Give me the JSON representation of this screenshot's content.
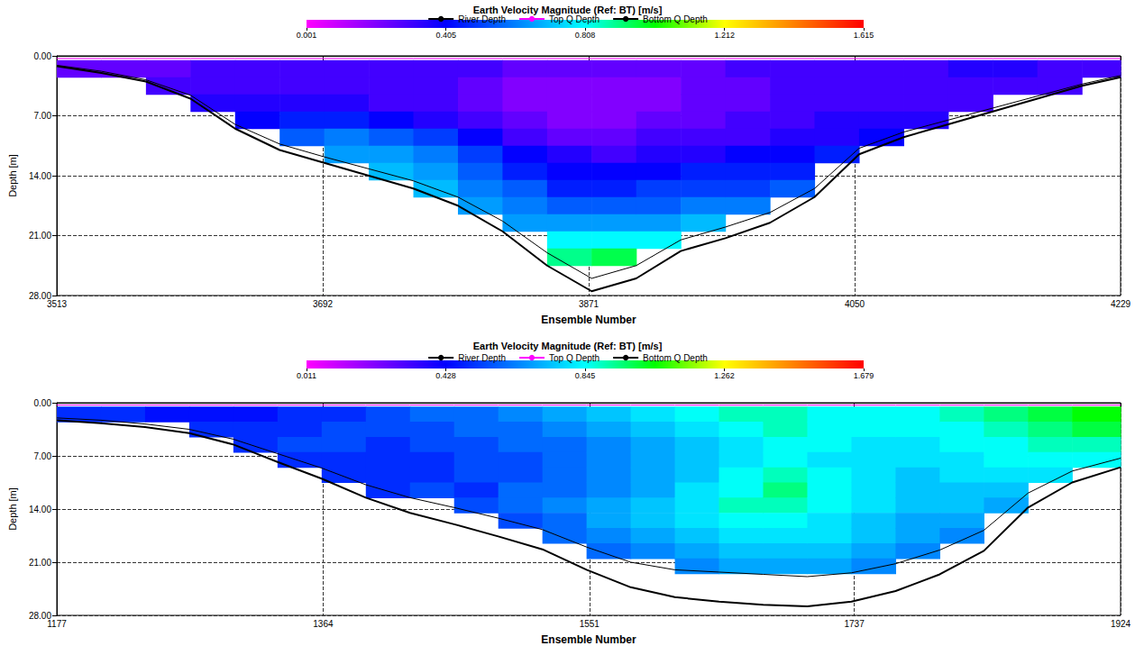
{
  "chart_data": [
    {
      "type": "heatmap",
      "title": "Earth Velocity Magnitude (Ref: BT) [m/s]",
      "x_label": "Ensemble Number",
      "y_label": "Depth [m]",
      "xlim": [
        3513,
        4229
      ],
      "xticks": [
        3513,
        3692,
        3871,
        4050,
        4229
      ],
      "ylim": [
        0,
        28
      ],
      "yticks": [
        {
          "value": 0,
          "label": "0.00"
        },
        {
          "value": 7,
          "label": "7.00"
        },
        {
          "value": 14,
          "label": "14.00"
        },
        {
          "value": 21,
          "label": "21.00"
        },
        {
          "value": 28,
          "label": "28.00"
        }
      ],
      "grid": true,
      "legend": "top",
      "colorbar": {
        "range": [
          0.001,
          1.615
        ],
        "ticks": [
          0.001,
          0.405,
          0.808,
          1.212,
          1.615
        ]
      },
      "cell_x": [
        3513,
        3543,
        3573,
        3603,
        3633,
        3663,
        3693,
        3723,
        3753,
        3783,
        3813,
        3843,
        3873,
        3903,
        3933,
        3963,
        3993,
        4023,
        4053,
        4083,
        4113,
        4143,
        4173,
        4203,
        4229
      ],
      "cell_y": [
        0.5,
        2.5,
        4.5,
        6.5,
        8.5,
        10.5,
        12.5,
        14.5,
        16.5,
        18.5,
        20.5,
        22.5,
        24.5,
        26.5
      ],
      "cells": [
        [
          0.25,
          null,
          null,
          null,
          null,
          null,
          null,
          null,
          null,
          null,
          null,
          null,
          null
        ],
        [
          0.25,
          null,
          null,
          null,
          null,
          null,
          null,
          null,
          null,
          null,
          null,
          null,
          null
        ],
        [
          0.25,
          0.3,
          null,
          null,
          null,
          null,
          null,
          null,
          null,
          null,
          null,
          null,
          null
        ],
        [
          0.3,
          0.3,
          0.35,
          null,
          null,
          null,
          null,
          null,
          null,
          null,
          null,
          null,
          null
        ],
        [
          0.3,
          0.3,
          0.35,
          0.4,
          null,
          null,
          null,
          null,
          null,
          null,
          null,
          null,
          null
        ],
        [
          0.3,
          0.3,
          0.35,
          0.45,
          0.55,
          null,
          null,
          null,
          null,
          null,
          null,
          null,
          null
        ],
        [
          0.3,
          0.3,
          0.35,
          0.45,
          0.6,
          0.65,
          null,
          null,
          null,
          null,
          null,
          null,
          null
        ],
        [
          0.3,
          0.3,
          0.3,
          0.4,
          0.55,
          0.65,
          0.7,
          null,
          null,
          null,
          null,
          null,
          null
        ],
        [
          0.3,
          0.3,
          0.3,
          0.35,
          0.5,
          0.6,
          0.65,
          0.7,
          null,
          null,
          null,
          null,
          null
        ],
        [
          0.3,
          0.25,
          0.25,
          0.3,
          0.4,
          0.5,
          0.55,
          0.6,
          0.65,
          null,
          null,
          null,
          null
        ],
        [
          0.25,
          0.2,
          0.2,
          0.25,
          0.3,
          0.4,
          0.45,
          0.55,
          0.6,
          0.65,
          null,
          null,
          null
        ],
        [
          0.25,
          0.2,
          0.2,
          0.2,
          0.25,
          0.35,
          0.4,
          0.45,
          0.55,
          0.65,
          0.8,
          0.9,
          null
        ],
        [
          0.25,
          0.2,
          0.2,
          0.2,
          0.25,
          0.3,
          0.4,
          0.45,
          0.55,
          0.65,
          0.8,
          0.95,
          null
        ],
        [
          0.25,
          0.2,
          0.2,
          0.25,
          0.3,
          0.35,
          0.4,
          0.5,
          0.55,
          0.65,
          0.8,
          null,
          null
        ],
        [
          0.25,
          0.25,
          0.25,
          0.25,
          0.3,
          0.35,
          0.45,
          0.5,
          0.6,
          0.7,
          null,
          null,
          null
        ],
        [
          0.3,
          0.25,
          0.25,
          0.3,
          0.3,
          0.4,
          0.45,
          0.5,
          0.6,
          null,
          null,
          null,
          null
        ],
        [
          0.3,
          0.3,
          0.3,
          0.3,
          0.35,
          0.4,
          0.45,
          0.55,
          null,
          null,
          null,
          null,
          null
        ],
        [
          0.3,
          0.3,
          0.3,
          0.35,
          0.35,
          0.45,
          null,
          null,
          null,
          null,
          null,
          null,
          null
        ],
        [
          0.3,
          0.3,
          0.3,
          0.35,
          0.4,
          null,
          null,
          null,
          null,
          null,
          null,
          null,
          null
        ],
        [
          0.3,
          0.3,
          0.3,
          0.35,
          null,
          null,
          null,
          null,
          null,
          null,
          null,
          null,
          null
        ],
        [
          0.35,
          0.3,
          0.3,
          null,
          null,
          null,
          null,
          null,
          null,
          null,
          null,
          null,
          null
        ],
        [
          0.35,
          0.3,
          null,
          null,
          null,
          null,
          null,
          null,
          null,
          null,
          null,
          null,
          null
        ],
        [
          0.3,
          0.3,
          null,
          null,
          null,
          null,
          null,
          null,
          null,
          null,
          null,
          null,
          null
        ],
        [
          0.3,
          null,
          null,
          null,
          null,
          null,
          null,
          null,
          null,
          null,
          null,
          null,
          null
        ]
      ],
      "x": [
        3513,
        3543,
        3573,
        3603,
        3633,
        3663,
        3693,
        3723,
        3753,
        3783,
        3813,
        3843,
        3873,
        3903,
        3933,
        3963,
        3993,
        4023,
        4053,
        4083,
        4113,
        4143,
        4173,
        4203,
        4229
      ],
      "series": [
        {
          "name": "River Depth",
          "type": "line",
          "color": "#000000",
          "values": [
            1.2,
            2.0,
            3.0,
            5.0,
            8.5,
            11.0,
            12.5,
            14.0,
            15.5,
            17.5,
            20.5,
            24.5,
            27.5,
            26.0,
            22.8,
            21.3,
            19.5,
            16.5,
            11.5,
            9.5,
            8.0,
            6.5,
            5.0,
            3.5,
            2.5
          ]
        },
        {
          "name": "Top Q Depth",
          "type": "line",
          "color": "#ff00ff",
          "values": [
            0.3,
            0.3,
            0.3,
            0.3,
            0.3,
            0.3,
            0.3,
            0.3,
            0.3,
            0.3,
            0.3,
            0.3,
            0.3,
            0.3,
            0.3,
            0.3,
            0.3,
            0.3,
            0.3,
            0.3,
            0.3,
            0.3,
            0.3,
            0.3,
            0.3
          ]
        },
        {
          "name": "Bottom Q Depth",
          "type": "line",
          "color": "#000000",
          "values": [
            1.1,
            1.8,
            2.8,
            4.6,
            8.0,
            10.3,
            11.8,
            13.2,
            14.6,
            16.5,
            19.3,
            23.0,
            26.0,
            24.5,
            21.5,
            20.0,
            18.3,
            15.5,
            10.8,
            8.9,
            7.5,
            6.1,
            4.7,
            3.3,
            2.3
          ]
        }
      ]
    },
    {
      "type": "heatmap",
      "title": "Earth Velocity Magnitude (Ref: BT) [m/s]",
      "x_label": "Ensemble Number",
      "y_label": "Depth [m]",
      "xlim": [
        1177,
        1924
      ],
      "xticks": [
        1177,
        1364,
        1551,
        1737,
        1924
      ],
      "ylim": [
        0,
        28
      ],
      "yticks": [
        {
          "value": 0,
          "label": "0.00"
        },
        {
          "value": 7,
          "label": "7.00"
        },
        {
          "value": 14,
          "label": "14.00"
        },
        {
          "value": 21,
          "label": "21.00"
        },
        {
          "value": 28,
          "label": "28.00"
        }
      ],
      "grid": true,
      "legend": "top",
      "colorbar": {
        "range": [
          0.011,
          1.679
        ],
        "ticks": [
          0.011,
          0.428,
          0.845,
          1.262,
          1.679
        ]
      },
      "cell_x": [
        1177,
        1208,
        1239,
        1270,
        1301,
        1332,
        1363,
        1394,
        1425,
        1456,
        1487,
        1518,
        1549,
        1580,
        1611,
        1642,
        1673,
        1704,
        1735,
        1766,
        1797,
        1828,
        1859,
        1890,
        1924
      ],
      "cell_y": [
        0.5,
        2.5,
        4.5,
        6.5,
        8.5,
        10.5,
        12.5,
        14.5,
        16.5,
        18.5,
        20.5,
        22.5,
        24.5,
        26.5
      ],
      "cells": [
        [
          0.5,
          null,
          null,
          null,
          null,
          null,
          null,
          null,
          null,
          null,
          null,
          null,
          null
        ],
        [
          0.5,
          null,
          null,
          null,
          null,
          null,
          null,
          null,
          null,
          null,
          null,
          null,
          null
        ],
        [
          0.45,
          null,
          null,
          null,
          null,
          null,
          null,
          null,
          null,
          null,
          null,
          null,
          null
        ],
        [
          0.45,
          0.5,
          null,
          null,
          null,
          null,
          null,
          null,
          null,
          null,
          null,
          null,
          null
        ],
        [
          0.45,
          0.5,
          0.5,
          null,
          null,
          null,
          null,
          null,
          null,
          null,
          null,
          null,
          null
        ],
        [
          0.5,
          0.5,
          0.55,
          0.5,
          null,
          null,
          null,
          null,
          null,
          null,
          null,
          null,
          null
        ],
        [
          0.5,
          0.55,
          0.55,
          0.5,
          0.5,
          null,
          null,
          null,
          null,
          null,
          null,
          null,
          null
        ],
        [
          0.55,
          0.55,
          0.5,
          0.5,
          0.5,
          0.5,
          null,
          null,
          null,
          null,
          null,
          null,
          null
        ],
        [
          0.6,
          0.55,
          0.55,
          0.5,
          0.5,
          0.55,
          null,
          null,
          null,
          null,
          null,
          null,
          null
        ],
        [
          0.6,
          0.6,
          0.55,
          0.55,
          0.55,
          0.5,
          0.55,
          null,
          null,
          null,
          null,
          null,
          null
        ],
        [
          0.65,
          0.6,
          0.6,
          0.55,
          0.55,
          0.6,
          0.6,
          0.55,
          null,
          null,
          null,
          null,
          null
        ],
        [
          0.7,
          0.65,
          0.6,
          0.6,
          0.6,
          0.6,
          0.65,
          0.6,
          0.6,
          null,
          null,
          null,
          null
        ],
        [
          0.75,
          0.7,
          0.65,
          0.65,
          0.65,
          0.65,
          0.7,
          0.7,
          0.65,
          0.6,
          null,
          null,
          null
        ],
        [
          0.8,
          0.75,
          0.7,
          0.7,
          0.7,
          0.7,
          0.75,
          0.75,
          0.7,
          0.65,
          null,
          null,
          null
        ],
        [
          0.85,
          0.8,
          0.75,
          0.75,
          0.75,
          0.8,
          0.8,
          0.8,
          0.75,
          0.7,
          0.65,
          null,
          null
        ],
        [
          0.9,
          0.85,
          0.8,
          0.8,
          0.85,
          0.85,
          0.9,
          0.85,
          0.8,
          0.75,
          0.7,
          null,
          null
        ],
        [
          0.9,
          0.9,
          0.85,
          0.85,
          0.9,
          0.95,
          0.9,
          0.85,
          0.8,
          0.75,
          0.7,
          null,
          null
        ],
        [
          0.85,
          0.85,
          0.85,
          0.8,
          0.85,
          0.85,
          0.85,
          0.8,
          0.8,
          0.75,
          0.7,
          null,
          null
        ],
        [
          0.85,
          0.85,
          0.8,
          0.8,
          0.8,
          0.8,
          0.8,
          0.75,
          0.75,
          0.7,
          0.65,
          null,
          null
        ],
        [
          0.85,
          0.85,
          0.8,
          0.8,
          0.75,
          0.75,
          0.75,
          0.7,
          0.7,
          0.65,
          null,
          null,
          null
        ],
        [
          0.9,
          0.85,
          0.85,
          0.8,
          0.8,
          0.75,
          0.75,
          0.7,
          0.65,
          null,
          null,
          null,
          null
        ],
        [
          0.95,
          0.9,
          0.85,
          0.85,
          0.8,
          0.75,
          0.7,
          null,
          null,
          null,
          null,
          null,
          null
        ],
        [
          1.0,
          0.95,
          0.9,
          0.85,
          0.8,
          null,
          null,
          null,
          null,
          null,
          null,
          null,
          null
        ],
        [
          1.05,
          1.0,
          0.9,
          0.85,
          null,
          null,
          null,
          null,
          null,
          null,
          null,
          null,
          null
        ]
      ],
      "x": [
        1177,
        1208,
        1239,
        1270,
        1301,
        1332,
        1363,
        1394,
        1425,
        1456,
        1487,
        1518,
        1549,
        1580,
        1611,
        1642,
        1673,
        1704,
        1735,
        1766,
        1797,
        1828,
        1859,
        1890,
        1924
      ],
      "series": [
        {
          "name": "River Depth",
          "type": "line",
          "color": "#000000",
          "values": [
            2.3,
            2.7,
            3.2,
            4.0,
            5.5,
            7.8,
            10.0,
            12.5,
            14.5,
            16.0,
            17.6,
            19.3,
            22.0,
            24.3,
            25.6,
            26.2,
            26.6,
            26.8,
            26.2,
            24.8,
            22.6,
            19.5,
            13.8,
            10.5,
            8.5
          ]
        },
        {
          "name": "Top Q Depth",
          "type": "line",
          "color": "#ff00ff",
          "values": [
            0.3,
            0.3,
            0.3,
            0.3,
            0.3,
            0.3,
            0.3,
            0.3,
            0.3,
            0.3,
            0.3,
            0.3,
            0.3,
            0.3,
            0.3,
            0.3,
            0.3,
            0.3,
            0.3,
            0.3,
            0.3,
            0.3,
            0.3,
            0.3,
            0.3
          ]
        },
        {
          "name": "Bottom Q Depth",
          "type": "line",
          "color": "#000000",
          "values": [
            2.0,
            2.3,
            2.8,
            3.5,
            4.8,
            6.7,
            8.6,
            10.8,
            12.5,
            13.8,
            15.2,
            16.7,
            19.0,
            21.0,
            22.0,
            22.3,
            22.6,
            22.9,
            22.4,
            21.2,
            19.4,
            16.8,
            11.9,
            9.0,
            7.3
          ]
        }
      ]
    }
  ]
}
